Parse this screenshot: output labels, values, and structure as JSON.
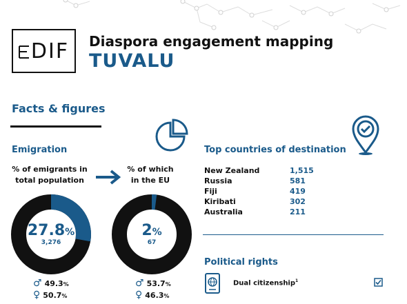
{
  "header": {
    "logo_text": "DIF",
    "logo_prefix": "EU",
    "title": "Diaspora engagement mapping",
    "country": "TUVALU"
  },
  "facts_heading": "Facts & figures",
  "emigration": {
    "heading": "Emigration",
    "total": {
      "label_line1": "% of emigrants in",
      "label_line2": "total population",
      "percent_value": "27.8",
      "percent_sign": "%",
      "count": "3,276",
      "share": 27.8,
      "male_pct": "49.3",
      "female_pct": "50.7"
    },
    "eu": {
      "label_line1": "% of which",
      "label_line2": "in the EU",
      "percent_value": "2",
      "percent_sign": "%",
      "count": "67",
      "share": 2,
      "male_pct": "53.7",
      "female_pct": "46.3"
    },
    "pct_suffix": "%"
  },
  "destinations": {
    "heading": "Top countries of destination",
    "rows": [
      {
        "country": "New Zealand",
        "value": "1,515"
      },
      {
        "country": "Russia",
        "value": "581"
      },
      {
        "country": "Fiji",
        "value": "419"
      },
      {
        "country": "Kiribati",
        "value": "302"
      },
      {
        "country": "Australia",
        "value": "211"
      }
    ]
  },
  "political_rights": {
    "heading": "Political rights",
    "dual_label": "Dual citizenship",
    "dual_footnote": "1"
  },
  "colors": {
    "brand_blue": "#1a5a8a",
    "dark": "#111111"
  }
}
